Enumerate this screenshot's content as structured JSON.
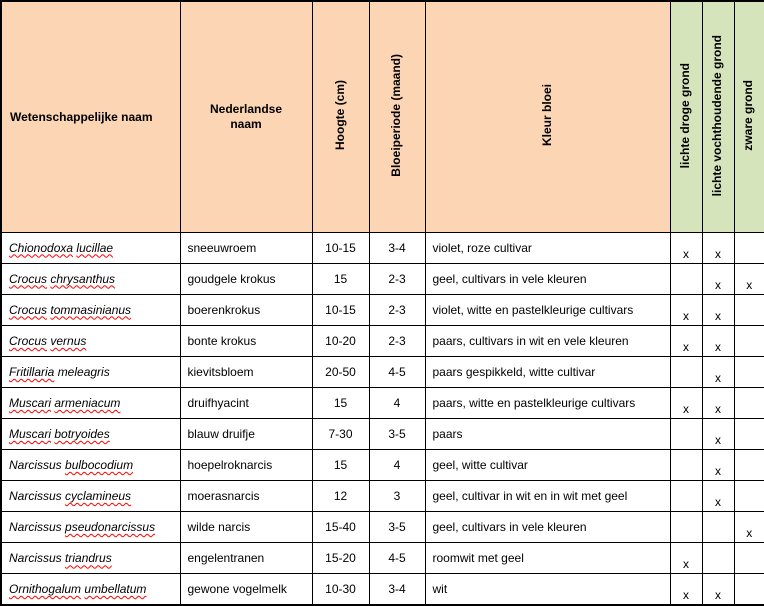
{
  "colors": {
    "header_peach": "#FCD5B4",
    "header_green": "#D6E4BC",
    "spellcheck_underline": "#FF0000",
    "border": "#000000"
  },
  "table": {
    "columns": [
      "Wetenschappelijke naam",
      "Nederlandse\nnaam",
      "Hoogte (cm)",
      "Bloeiperiode (maand)",
      "Kleur bloei",
      "lichte droge grond",
      "lichte vochthoudende grond",
      "zware grond"
    ],
    "rows": [
      {
        "sci": [
          {
            "text": "Chionodoxa",
            "misspelled": true
          },
          {
            "text": "lucillae",
            "misspelled": true
          }
        ],
        "nl": "sneeuwroem",
        "hoogte": "10-15",
        "bloei": "3-4",
        "kleur": "violet, roze cultivar",
        "soils": [
          "x",
          "x",
          ""
        ]
      },
      {
        "sci": [
          {
            "text": "Crocus",
            "misspelled": true
          },
          {
            "text": "chrysanthus",
            "misspelled": true
          }
        ],
        "nl": "goudgele krokus",
        "hoogte": "15",
        "bloei": "2-3",
        "kleur": "geel, cultivars in vele kleuren",
        "soils": [
          "",
          "x",
          "x"
        ]
      },
      {
        "sci": [
          {
            "text": "Crocus",
            "misspelled": true
          },
          {
            "text": "tommasinianus",
            "misspelled": true
          }
        ],
        "nl": "boerenkrokus",
        "hoogte": "10-15",
        "bloei": "2-3",
        "kleur": "violet, witte en pastelkleurige cultivars",
        "soils": [
          "x",
          "x",
          ""
        ]
      },
      {
        "sci": [
          {
            "text": "Crocus",
            "misspelled": true
          },
          {
            "text": "vernus",
            "misspelled": true
          }
        ],
        "nl": "bonte krokus",
        "hoogte": "10-20",
        "bloei": "2-3",
        "kleur": "paars, cultivars in wit en vele kleuren",
        "soils": [
          "x",
          "x",
          ""
        ]
      },
      {
        "sci": [
          {
            "text": "Fritillaria",
            "misspelled": true
          },
          {
            "text": "meleagris",
            "misspelled": false
          }
        ],
        "nl": "kievitsbloem",
        "hoogte": "20-50",
        "bloei": "4-5",
        "kleur": "paars gespikkeld, witte cultivar",
        "soils": [
          "",
          "x",
          ""
        ]
      },
      {
        "sci": [
          {
            "text": "Muscari",
            "misspelled": true
          },
          {
            "text": "armeniacum",
            "misspelled": true
          }
        ],
        "nl": "druifhyacint",
        "hoogte": "15",
        "bloei": "4",
        "kleur": "paars, witte en pastelkleurige cultivars",
        "soils": [
          "x",
          "x",
          ""
        ]
      },
      {
        "sci": [
          {
            "text": "Muscari",
            "misspelled": true
          },
          {
            "text": "botryoides",
            "misspelled": true
          }
        ],
        "nl": "blauw druifje",
        "hoogte": "7-30",
        "bloei": "3-5",
        "kleur": "paars",
        "soils": [
          "",
          "x",
          ""
        ]
      },
      {
        "sci": [
          {
            "text": "Narcissus",
            "misspelled": false
          },
          {
            "text": "bulbocodium",
            "misspelled": true
          }
        ],
        "nl": "hoepelroknarcis",
        "hoogte": "15",
        "bloei": "4",
        "kleur": "geel, witte cultivar",
        "soils": [
          "",
          "x",
          ""
        ]
      },
      {
        "sci": [
          {
            "text": "Narcissus",
            "misspelled": false
          },
          {
            "text": "cyclamineus",
            "misspelled": true
          }
        ],
        "nl": "moerasnarcis",
        "hoogte": "12",
        "bloei": "3",
        "kleur": "geel, cultivar in wit en in wit met geel",
        "soils": [
          "",
          "x",
          ""
        ]
      },
      {
        "sci": [
          {
            "text": "Narcissus",
            "misspelled": false
          },
          {
            "text": "pseudonarcissus",
            "misspelled": true
          }
        ],
        "nl": "wilde narcis",
        "hoogte": "15-40",
        "bloei": "3-5",
        "kleur": "geel, cultivars in vele kleuren",
        "soils": [
          "",
          "",
          "x"
        ]
      },
      {
        "sci": [
          {
            "text": "Narcissus",
            "misspelled": false
          },
          {
            "text": "triandrus",
            "misspelled": true
          }
        ],
        "nl": "engelentranen",
        "hoogte": "15-20",
        "bloei": "4-5",
        "kleur": "roomwit met geel",
        "soils": [
          "x",
          "",
          ""
        ]
      },
      {
        "sci": [
          {
            "text": "Ornithogalum",
            "misspelled": true
          },
          {
            "text": "umbellatum",
            "misspelled": true
          }
        ],
        "nl": "gewone vogelmelk",
        "hoogte": "10-30",
        "bloei": "3-4",
        "kleur": "wit",
        "soils": [
          "x",
          "x",
          ""
        ]
      }
    ]
  }
}
